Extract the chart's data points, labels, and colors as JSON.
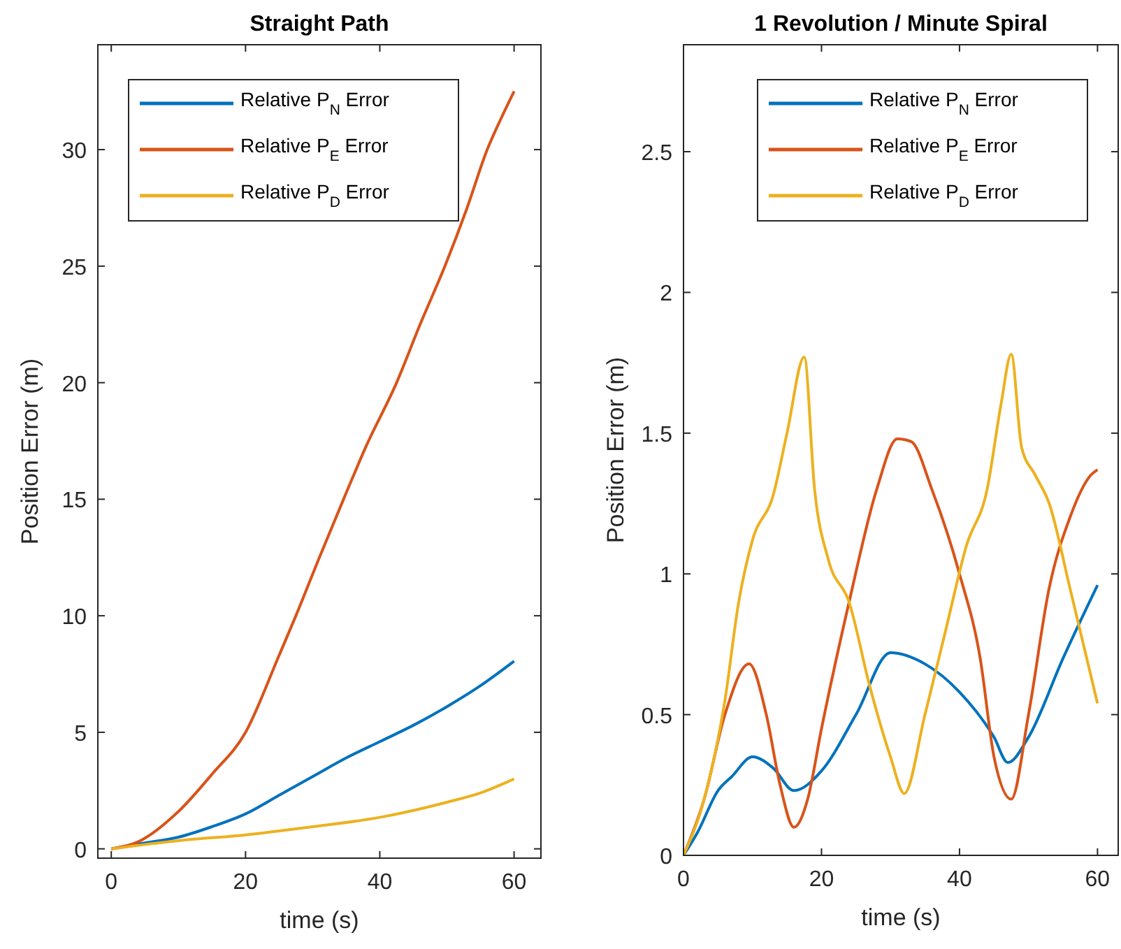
{
  "chart_data": [
    {
      "type": "line",
      "title": "Straight Path",
      "xlabel": "time (s)",
      "ylabel": "Position Error (m)",
      "xlim": [
        -2,
        64
      ],
      "xticks": [
        0,
        20,
        40,
        60
      ],
      "ylim": [
        -0.4,
        34.5
      ],
      "yticks": [
        0,
        5,
        10,
        15,
        20,
        25,
        30
      ],
      "legend": "top left",
      "grid": false,
      "series": [
        {
          "name": "Relative P$_{N}$ Error",
          "color": "#0072bd",
          "x": [
            0,
            5,
            10,
            15,
            20,
            25,
            30,
            35,
            40,
            45,
            50,
            55,
            60
          ],
          "values": [
            0,
            0.25,
            0.5,
            0.95,
            1.5,
            2.3,
            3.1,
            3.9,
            4.6,
            5.3,
            6.1,
            7.0,
            8.05
          ]
        },
        {
          "name": "Relative P$_{E}$ Error",
          "color": "#d95319",
          "x": [
            0,
            4,
            10,
            15,
            20,
            25,
            27.5,
            31,
            34.6,
            38,
            42.5,
            46,
            49.7,
            53,
            56,
            58,
            60
          ],
          "values": [
            0,
            0.3,
            1.6,
            3.2,
            5.0,
            8.3,
            10,
            12.5,
            15,
            17.3,
            20,
            22.5,
            25,
            27.5,
            30,
            31.3,
            32.5
          ]
        },
        {
          "name": "Relative P$_{D}$ Error",
          "color": "#edb120",
          "x": [
            0,
            10,
            20,
            30,
            40,
            50,
            55,
            60
          ],
          "values": [
            0,
            0.35,
            0.6,
            0.95,
            1.35,
            2.0,
            2.4,
            3.0
          ]
        }
      ]
    },
    {
      "type": "line",
      "title": "1 Revolution / Minute Spiral",
      "xlabel": "time (s)",
      "ylabel": "Position Error (m)",
      "xlim": [
        0,
        63
      ],
      "xticks": [
        0,
        20,
        40,
        60
      ],
      "ylim": [
        0,
        2.88
      ],
      "yticks": [
        0,
        0.5,
        1,
        1.5,
        2,
        2.5
      ],
      "legend": "top right",
      "grid": false,
      "series": [
        {
          "name": "Relative P$_{N}$ Error",
          "color": "#0072bd",
          "x": [
            0,
            2,
            5,
            7,
            10,
            13,
            16,
            20,
            25,
            30,
            35,
            40,
            45,
            47,
            50,
            55,
            60
          ],
          "values": [
            0,
            0.08,
            0.23,
            0.28,
            0.35,
            0.31,
            0.23,
            0.3,
            0.5,
            0.72,
            0.68,
            0.58,
            0.42,
            0.33,
            0.42,
            0.7,
            0.96
          ]
        },
        {
          "name": "Relative P$_{E}$ Error",
          "color": "#d95319",
          "x": [
            0,
            3,
            6,
            9.5,
            12,
            14,
            16,
            18,
            20,
            24,
            28,
            31,
            33,
            36,
            40,
            43,
            45,
            47.5,
            50,
            53,
            56,
            59,
            60
          ],
          "values": [
            0,
            0.2,
            0.5,
            0.68,
            0.5,
            0.25,
            0.1,
            0.2,
            0.45,
            0.9,
            1.3,
            1.48,
            1.47,
            1.3,
            1.0,
            0.7,
            0.35,
            0.2,
            0.5,
            0.95,
            1.2,
            1.35,
            1.37
          ]
        },
        {
          "name": "Relative P$_{D}$ Error",
          "color": "#edb120",
          "x": [
            0,
            3,
            6,
            8,
            10,
            13,
            15,
            17.5,
            19,
            21,
            24,
            27,
            30,
            32,
            35,
            38,
            41,
            44,
            46,
            47.5,
            49,
            51,
            53,
            56,
            60
          ],
          "values": [
            0,
            0.2,
            0.55,
            0.9,
            1.12,
            1.28,
            1.5,
            1.77,
            1.3,
            1.05,
            0.9,
            0.6,
            0.35,
            0.22,
            0.5,
            0.8,
            1.1,
            1.3,
            1.6,
            1.78,
            1.45,
            1.35,
            1.25,
            0.95,
            0.54
          ]
        }
      ]
    }
  ]
}
